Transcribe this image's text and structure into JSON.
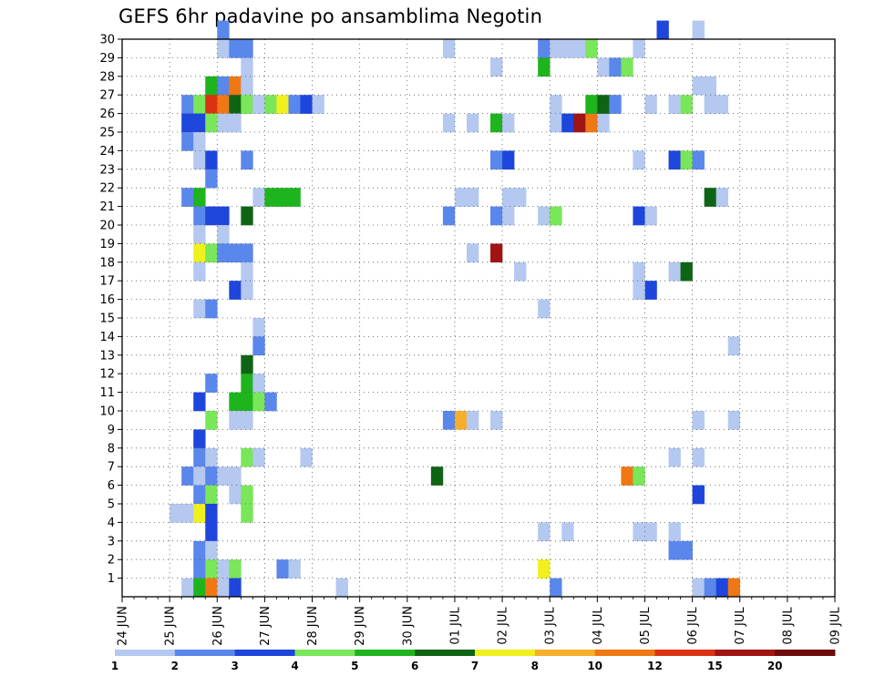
{
  "chart_data": {
    "type": "heatmap",
    "title": "GEFS 6hr padavine po ansamblima Negotin",
    "x_tick_labels": [
      "24 JUN",
      "25 JUN",
      "26 JUN",
      "27 JUN",
      "28 JUN",
      "29 JUN",
      "30 JUN",
      "01 JUL",
      "02 JUL",
      "03 JUL",
      "04 JUL",
      "05 JUL",
      "06 JUL",
      "07 JUL",
      "08 JUL",
      "09 JUL"
    ],
    "x_steps_per_day": 4,
    "y_tick_labels": [
      "1",
      "2",
      "3",
      "4",
      "5",
      "6",
      "7",
      "8",
      "9",
      "10",
      "11",
      "12",
      "13",
      "14",
      "15",
      "16",
      "17",
      "18",
      "19",
      "20",
      "21",
      "22",
      "23",
      "24",
      "25",
      "26",
      "27",
      "28",
      "29",
      "30"
    ],
    "ylim": [
      0,
      30
    ],
    "grid": true,
    "legend": {
      "placement": "bottom",
      "boundaries": [
        "1",
        "2",
        "3",
        "4",
        "5",
        "6",
        "7",
        "8",
        "10",
        "12",
        "15",
        "20"
      ],
      "colors": [
        "#b4c8f0",
        "#5a87eb",
        "#1e46dc",
        "#7ae65a",
        "#1eb41e",
        "#0f6414",
        "#f0f01e",
        "#f5af2d",
        "#f07814",
        "#dc3214",
        "#a01414",
        "#6e0a0a"
      ]
    },
    "cells_note": "each cell is [x_step, member, color_class]; x_step 0 = 24 JUN 00Z, color_class indexes legend.colors",
    "cells": [
      [
        8,
        30,
        1
      ],
      [
        8,
        29,
        0
      ],
      [
        9,
        29,
        1
      ],
      [
        10,
        29,
        1
      ],
      [
        10,
        28,
        0
      ],
      [
        7,
        27,
        4
      ],
      [
        8,
        27,
        1
      ],
      [
        9,
        27,
        8
      ],
      [
        10,
        27,
        0
      ],
      [
        5,
        26,
        1
      ],
      [
        6,
        26,
        3
      ],
      [
        7,
        26,
        9
      ],
      [
        8,
        26,
        8
      ],
      [
        9,
        26,
        5
      ],
      [
        10,
        26,
        3
      ],
      [
        11,
        26,
        0
      ],
      [
        12,
        26,
        3
      ],
      [
        13,
        26,
        6
      ],
      [
        14,
        26,
        1
      ],
      [
        15,
        26,
        2
      ],
      [
        16,
        26,
        0
      ],
      [
        5,
        25,
        2
      ],
      [
        6,
        25,
        2
      ],
      [
        7,
        25,
        3
      ],
      [
        8,
        25,
        0
      ],
      [
        9,
        25,
        0
      ],
      [
        5,
        24,
        1
      ],
      [
        6,
        24,
        0
      ],
      [
        6,
        23,
        0
      ],
      [
        7,
        23,
        2
      ],
      [
        10,
        23,
        1
      ],
      [
        7,
        22,
        1
      ],
      [
        5,
        21,
        1
      ],
      [
        6,
        21,
        4
      ],
      [
        11,
        21,
        0
      ],
      [
        12,
        21,
        4
      ],
      [
        13,
        21,
        4
      ],
      [
        14,
        21,
        4
      ],
      [
        6,
        20,
        1
      ],
      [
        7,
        20,
        2
      ],
      [
        8,
        20,
        2
      ],
      [
        10,
        20,
        5
      ],
      [
        6,
        19,
        0
      ],
      [
        8,
        19,
        0
      ],
      [
        6,
        18,
        6
      ],
      [
        7,
        18,
        3
      ],
      [
        8,
        18,
        1
      ],
      [
        9,
        18,
        1
      ],
      [
        10,
        18,
        1
      ],
      [
        6,
        17,
        0
      ],
      [
        10,
        17,
        0
      ],
      [
        9,
        16,
        2
      ],
      [
        10,
        16,
        0
      ],
      [
        6,
        15,
        0
      ],
      [
        7,
        15,
        1
      ],
      [
        11,
        14,
        0
      ],
      [
        11,
        13,
        1
      ],
      [
        10,
        12,
        5
      ],
      [
        7,
        11,
        1
      ],
      [
        10,
        11,
        4
      ],
      [
        11,
        11,
        0
      ],
      [
        6,
        10,
        2
      ],
      [
        9,
        10,
        4
      ],
      [
        10,
        10,
        4
      ],
      [
        11,
        10,
        3
      ],
      [
        12,
        10,
        1
      ],
      [
        7,
        9,
        3
      ],
      [
        9,
        9,
        0
      ],
      [
        10,
        9,
        0
      ],
      [
        6,
        8,
        2
      ],
      [
        6,
        7,
        1
      ],
      [
        7,
        7,
        0
      ],
      [
        10,
        7,
        3
      ],
      [
        11,
        7,
        0
      ],
      [
        15,
        7,
        0
      ],
      [
        5,
        6,
        1
      ],
      [
        6,
        6,
        0
      ],
      [
        7,
        6,
        1
      ],
      [
        8,
        6,
        0
      ],
      [
        9,
        6,
        0
      ],
      [
        6,
        5,
        1
      ],
      [
        7,
        5,
        3
      ],
      [
        9,
        5,
        0
      ],
      [
        10,
        5,
        3
      ],
      [
        4,
        4,
        0
      ],
      [
        5,
        4,
        0
      ],
      [
        6,
        4,
        6
      ],
      [
        7,
        4,
        2
      ],
      [
        10,
        4,
        3
      ],
      [
        7,
        3,
        2
      ],
      [
        6,
        2,
        1
      ],
      [
        7,
        2,
        0
      ],
      [
        6,
        1,
        1
      ],
      [
        7,
        1,
        3
      ],
      [
        8,
        1,
        0
      ],
      [
        9,
        1,
        3
      ],
      [
        13,
        1,
        1
      ],
      [
        14,
        1,
        0
      ],
      [
        5,
        0,
        0
      ],
      [
        6,
        0,
        4
      ],
      [
        7,
        0,
        8
      ],
      [
        8,
        0,
        0
      ],
      [
        9,
        0,
        2
      ],
      [
        18,
        0,
        0
      ],
      [
        27,
        29,
        0
      ],
      [
        27,
        25,
        0
      ],
      [
        27,
        20,
        1
      ],
      [
        27,
        9,
        1
      ],
      [
        26,
        6,
        5
      ],
      [
        29,
        25,
        0
      ],
      [
        28,
        21,
        0
      ],
      [
        29,
        21,
        0
      ],
      [
        29,
        18,
        0
      ],
      [
        28,
        9,
        7
      ],
      [
        29,
        9,
        0
      ],
      [
        31,
        28,
        0
      ],
      [
        31,
        23,
        1
      ],
      [
        32,
        23,
        2
      ],
      [
        31,
        20,
        1
      ],
      [
        32,
        20,
        0
      ],
      [
        31,
        25,
        4
      ],
      [
        32,
        25,
        0
      ],
      [
        31,
        18,
        10
      ],
      [
        31,
        9,
        0
      ],
      [
        33,
        17,
        0
      ],
      [
        32,
        21,
        0
      ],
      [
        33,
        21,
        0
      ],
      [
        35,
        29,
        1
      ],
      [
        36,
        29,
        0
      ],
      [
        38,
        29,
        0
      ],
      [
        39,
        29,
        3
      ],
      [
        35,
        28,
        4
      ],
      [
        36,
        26,
        0
      ],
      [
        36,
        25,
        0
      ],
      [
        37,
        25,
        2
      ],
      [
        38,
        25,
        10
      ],
      [
        39,
        25,
        8
      ],
      [
        40,
        25,
        0
      ],
      [
        39,
        26,
        4
      ],
      [
        40,
        26,
        5
      ],
      [
        41,
        26,
        1
      ],
      [
        35,
        20,
        0
      ],
      [
        36,
        20,
        3
      ],
      [
        35,
        15,
        0
      ],
      [
        35,
        1,
        6
      ],
      [
        35,
        3,
        0
      ],
      [
        37,
        3,
        0
      ],
      [
        40,
        28,
        0
      ],
      [
        41,
        28,
        1
      ],
      [
        42,
        28,
        3
      ],
      [
        37,
        29,
        0
      ],
      [
        36,
        0,
        1
      ],
      [
        43,
        29,
        0
      ],
      [
        43,
        23,
        0
      ],
      [
        43,
        20,
        2
      ],
      [
        44,
        20,
        0
      ],
      [
        43,
        17,
        0
      ],
      [
        44,
        16,
        2
      ],
      [
        43,
        16,
        0
      ],
      [
        42,
        6,
        8
      ],
      [
        43,
        6,
        3
      ],
      [
        43,
        3,
        0
      ],
      [
        44,
        3,
        0
      ],
      [
        44,
        26,
        0
      ],
      [
        46,
        26,
        0
      ],
      [
        47,
        26,
        3
      ],
      [
        46,
        23,
        2
      ],
      [
        47,
        23,
        3
      ],
      [
        46,
        17,
        0
      ],
      [
        47,
        17,
        5
      ],
      [
        46,
        7,
        0
      ],
      [
        46,
        2,
        1
      ],
      [
        47,
        2,
        1
      ],
      [
        46,
        3,
        0
      ],
      [
        45,
        30,
        2
      ],
      [
        48,
        27,
        0
      ],
      [
        49,
        27,
        0
      ],
      [
        48,
        30,
        0
      ],
      [
        49,
        26,
        0
      ],
      [
        50,
        26,
        0
      ],
      [
        48,
        23,
        1
      ],
      [
        49,
        21,
        5
      ],
      [
        50,
        21,
        0
      ],
      [
        48,
        9,
        0
      ],
      [
        48,
        7,
        0
      ],
      [
        48,
        5,
        2
      ],
      [
        48,
        0,
        0
      ],
      [
        49,
        0,
        1
      ],
      [
        50,
        0,
        2
      ],
      [
        51,
        0,
        8
      ],
      [
        51,
        13,
        0
      ],
      [
        51,
        9,
        0
      ]
    ]
  }
}
